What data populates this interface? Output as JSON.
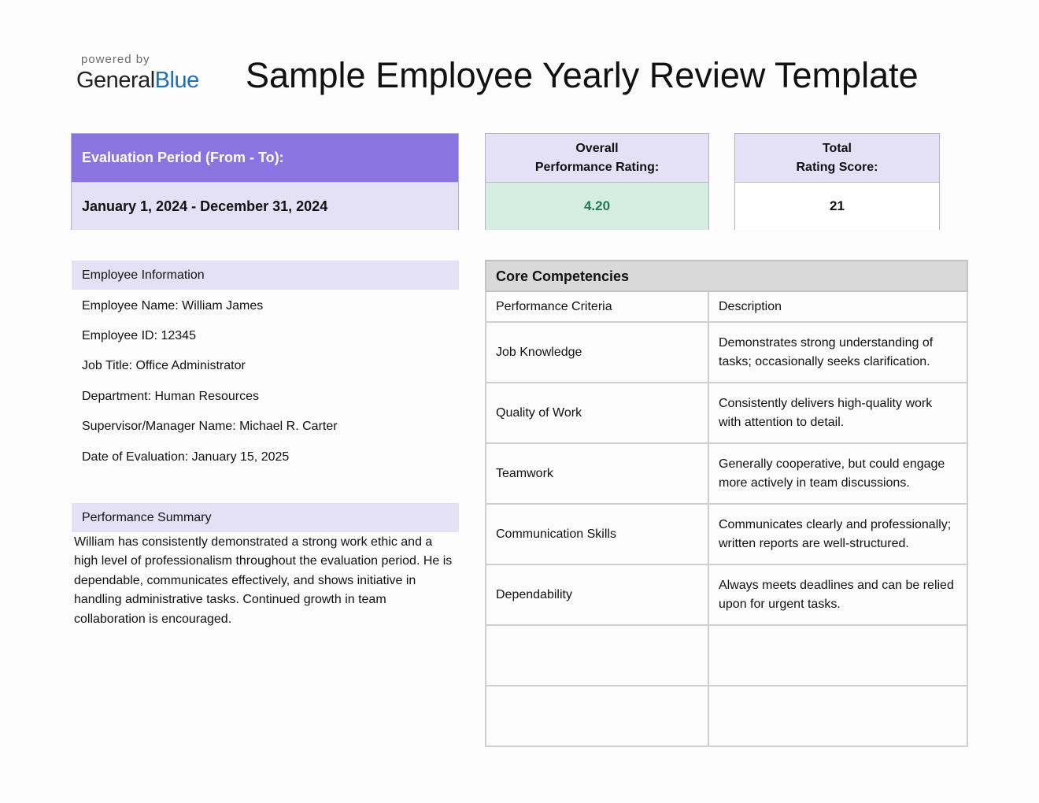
{
  "brand": {
    "powered_by": "powered by",
    "name_part1": "General",
    "name_part2": "Blue"
  },
  "title": "Sample Employee Yearly Review Template",
  "evaluation": {
    "label": "Evaluation Period (From - To):",
    "value": "January 1, 2024 - December 31, 2024"
  },
  "overall_rating": {
    "label_line1": "Overall",
    "label_line2": "Performance Rating:",
    "value": "4.20"
  },
  "total_score": {
    "label_line1": "Total",
    "label_line2": "Rating Score:",
    "value": "21"
  },
  "employee_info": {
    "heading": "Employee Information",
    "lines": [
      "Employee Name: William James",
      "Employee ID: 12345",
      "Job Title: Office Administrator",
      "Department: Human Resources",
      "Supervisor/Manager Name: Michael R. Carter",
      "Date of Evaluation: January 15, 2025"
    ]
  },
  "summary": {
    "heading": "Performance Summary",
    "text": "William has consistently demonstrated a strong work ethic and a high level of professionalism throughout the evaluation period. He is dependable, communicates effectively, and shows initiative in handling administrative tasks. Continued growth in team collaboration is encouraged."
  },
  "competencies": {
    "heading": "Core Competencies",
    "col_criteria": "Performance Criteria",
    "col_description": "Description",
    "rows": [
      {
        "criteria": "Job Knowledge",
        "description": "Demonstrates strong understanding of tasks; occasionally seeks clarification."
      },
      {
        "criteria": "Quality of Work",
        "description": "Consistently delivers high-quality work with attention to detail."
      },
      {
        "criteria": "Teamwork",
        "description": "Generally cooperative, but could engage more actively in team discussions."
      },
      {
        "criteria": "Communication Skills",
        "description": "Communicates clearly and professionally; written reports are well-structured."
      },
      {
        "criteria": "Dependability",
        "description": "Always meets deadlines and can be relied upon for urgent tasks."
      },
      {
        "criteria": "",
        "description": ""
      },
      {
        "criteria": "",
        "description": ""
      }
    ]
  },
  "colors": {
    "accent": "#8a74e2",
    "light_accent": "#e4e0f6",
    "rating_bg": "#d4ede0",
    "rating_text": "#1f7a53",
    "brand_blue": "#1f6fbf"
  }
}
